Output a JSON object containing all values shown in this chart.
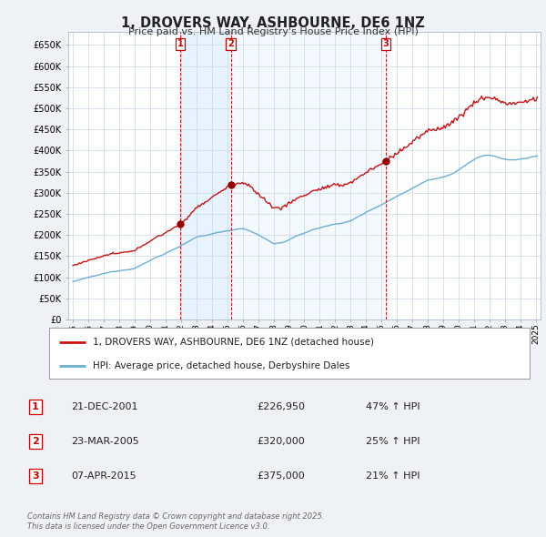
{
  "title": "1, DROVERS WAY, ASHBOURNE, DE6 1NZ",
  "subtitle": "Price paid vs. HM Land Registry's House Price Index (HPI)",
  "legend_entries": [
    "1, DROVERS WAY, ASHBOURNE, DE6 1NZ (detached house)",
    "HPI: Average price, detached house, Derbyshire Dales"
  ],
  "transactions": [
    {
      "label": "1",
      "date": "21-DEC-2001",
      "price": "£226,950",
      "change": "47% ↑ HPI",
      "year": 2001.97
    },
    {
      "label": "2",
      "date": "23-MAR-2005",
      "price": "£320,000",
      "change": "25% ↑ HPI",
      "year": 2005.23
    },
    {
      "label": "3",
      "date": "07-APR-2015",
      "price": "£375,000",
      "change": "21% ↑ HPI",
      "year": 2015.27
    }
  ],
  "transaction_values": [
    226950,
    320000,
    375000
  ],
  "ylim": [
    0,
    680000
  ],
  "yticks": [
    0,
    50000,
    100000,
    150000,
    200000,
    250000,
    300000,
    350000,
    400000,
    450000,
    500000,
    550000,
    600000,
    650000
  ],
  "footer": "Contains HM Land Registry data © Crown copyright and database right 2025.\nThis data is licensed under the Open Government Licence v3.0.",
  "hpi_color": "#6baed6",
  "price_color": "#cc1111",
  "vline_color": "#cc0000",
  "shade_color": "#ddeeff",
  "background_color": "#eef2f7",
  "plot_bg_color": "#ffffff",
  "grid_color": "#c8d8e8"
}
